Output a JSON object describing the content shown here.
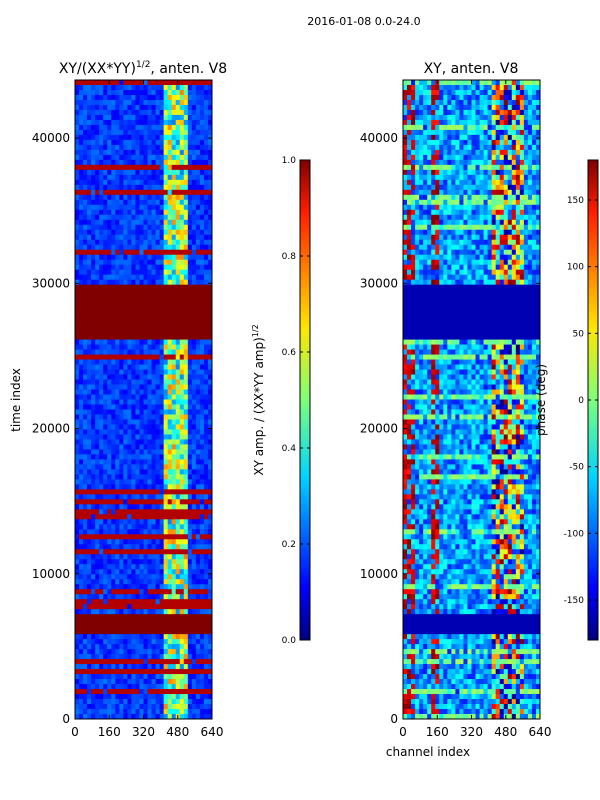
{
  "suptitle": "2016-01-08 0.0-24.0",
  "chart_data": [
    {
      "type": "heatmap",
      "title_main": "XY/(XX*YY)",
      "title_sup": "1/2",
      "title_tail": ", anten. V8",
      "xlabel": "",
      "ylabel": "time index",
      "x_ticks": [
        "0",
        "160",
        "320",
        "480",
        "640"
      ],
      "y_ticks": [
        "0",
        "10000",
        "20000",
        "30000",
        "40000"
      ],
      "xlim": [
        0,
        640
      ],
      "ylim": [
        0,
        44000
      ],
      "colorbar": {
        "label_main": "XY amp. / (XX*YY amp)",
        "label_sup": "1/2",
        "range": [
          0.0,
          1.0
        ],
        "ticks": [
          "0.0",
          "0.2",
          "0.4",
          "0.6",
          "0.8",
          "1.0"
        ],
        "colormap": "jet"
      }
    },
    {
      "type": "heatmap",
      "title_main": "XY, anten. V8",
      "xlabel": "channel index",
      "ylabel": "",
      "x_ticks": [
        "0",
        "160",
        "320",
        "480",
        "640"
      ],
      "y_ticks": [
        "0",
        "10000",
        "20000",
        "30000",
        "40000"
      ],
      "xlim": [
        0,
        640
      ],
      "ylim": [
        0,
        44000
      ],
      "colorbar": {
        "label_main": "phase (deg)",
        "range": [
          -180,
          180
        ],
        "ticks": [
          "-150",
          "-100",
          "-50",
          "0",
          "50",
          "100",
          "150"
        ],
        "colormap": "jet"
      }
    }
  ]
}
